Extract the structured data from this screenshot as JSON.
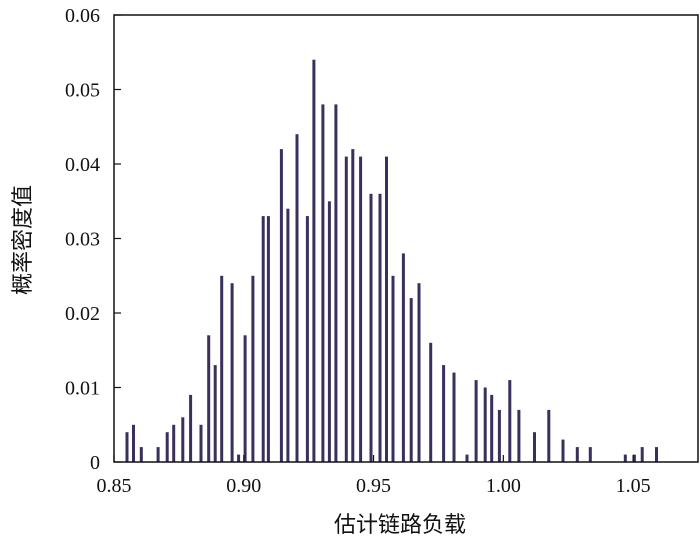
{
  "chart_data": {
    "type": "bar",
    "xlabel": "估计链路负载",
    "ylabel": "概率密度值",
    "xlim": [
      0.85,
      1.075
    ],
    "ylim": [
      0,
      0.06
    ],
    "xticks": [
      0.85,
      0.9,
      0.95,
      1.0,
      1.05
    ],
    "xtick_labels": [
      "0.85",
      "0.90",
      "0.95",
      "1.00",
      "1.05"
    ],
    "yticks": [
      0,
      0.01,
      0.02,
      0.03,
      0.04,
      0.05,
      0.06
    ],
    "ytick_labels": [
      "0",
      "0.01",
      "0.02",
      "0.03",
      "0.04",
      "0.05",
      "0.06"
    ],
    "grid": false,
    "bar_color": "#3b2f5c",
    "x": [
      0.855,
      0.8575,
      0.8605,
      0.867,
      0.8705,
      0.873,
      0.8765,
      0.8795,
      0.8835,
      0.8865,
      0.889,
      0.8915,
      0.8955,
      0.898,
      0.9005,
      0.9035,
      0.9075,
      0.9095,
      0.9145,
      0.917,
      0.9205,
      0.9245,
      0.927,
      0.9305,
      0.933,
      0.9355,
      0.9395,
      0.942,
      0.945,
      0.949,
      0.9525,
      0.955,
      0.9575,
      0.9615,
      0.9645,
      0.9675,
      0.972,
      0.977,
      0.981,
      0.986,
      0.9895,
      0.993,
      0.9955,
      0.9985,
      1.0025,
      1.006,
      1.012,
      1.0175,
      1.023,
      1.0285,
      1.0335,
      1.047,
      1.0505,
      1.0535,
      1.059
    ],
    "values": [
      0.004,
      0.005,
      0.002,
      0.002,
      0.004,
      0.005,
      0.006,
      0.009,
      0.005,
      0.017,
      0.013,
      0.025,
      0.024,
      0.001,
      0.017,
      0.025,
      0.033,
      0.033,
      0.042,
      0.034,
      0.044,
      0.033,
      0.054,
      0.048,
      0.035,
      0.048,
      0.041,
      0.042,
      0.041,
      0.036,
      0.036,
      0.041,
      0.025,
      0.028,
      0.022,
      0.024,
      0.016,
      0.013,
      0.012,
      0.001,
      0.011,
      0.01,
      0.009,
      0.007,
      0.011,
      0.007,
      0.004,
      0.007,
      0.003,
      0.002,
      0.002,
      0.001,
      0.001,
      0.002,
      0.002
    ]
  }
}
